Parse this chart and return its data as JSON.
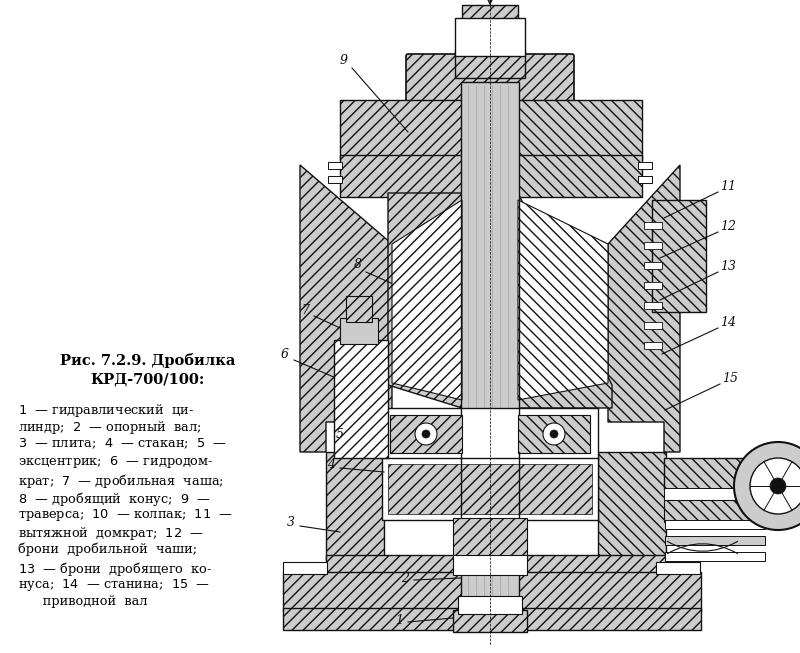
{
  "title_line1": "Рис. 7.2.9. Дробилка",
  "title_line2": "КРД-700/100:",
  "bg_color": "#ffffff",
  "DARK": "#111111",
  "LIGHT": "#cccccc",
  "WHITE": "#ffffff",
  "fig_width": 8.0,
  "fig_height": 6.53,
  "dpi": 100,
  "legend_lines": [
    "\\$\\mathit{1}\\$ — гидравлический ци-",
    "линдр; \\$\\mathit{2}\\$ — опорный вал;",
    "\\$\\mathit{3}\\$ — плита; \\$\\mathit{4}\\$ — стакан; \\$\\mathit{5}\\$ —",
    "эксцентрик; \\$\\mathit{6}\\$ — гидродом-",
    "крат; \\$\\mathit{7}\\$ — дробильная чаша;",
    "\\$\\mathit{8}\\$ — дробящий конус; \\$\\mathit{9}\\$ —",
    "траверса; \\$\\mathit{10}\\$ — колпак; \\$\\mathit{11}\\$ —",
    "вытяжной домкрат; \\$\\mathit{12}\\$ —",
    "брони дробильной чаши;",
    "\\$\\mathit{13}\\$ — брони дробящего ко-",
    "нуса; \\$\\mathit{14}\\$ — станина; \\$\\mathit{15}\\$ —",
    "      приводной вал"
  ]
}
